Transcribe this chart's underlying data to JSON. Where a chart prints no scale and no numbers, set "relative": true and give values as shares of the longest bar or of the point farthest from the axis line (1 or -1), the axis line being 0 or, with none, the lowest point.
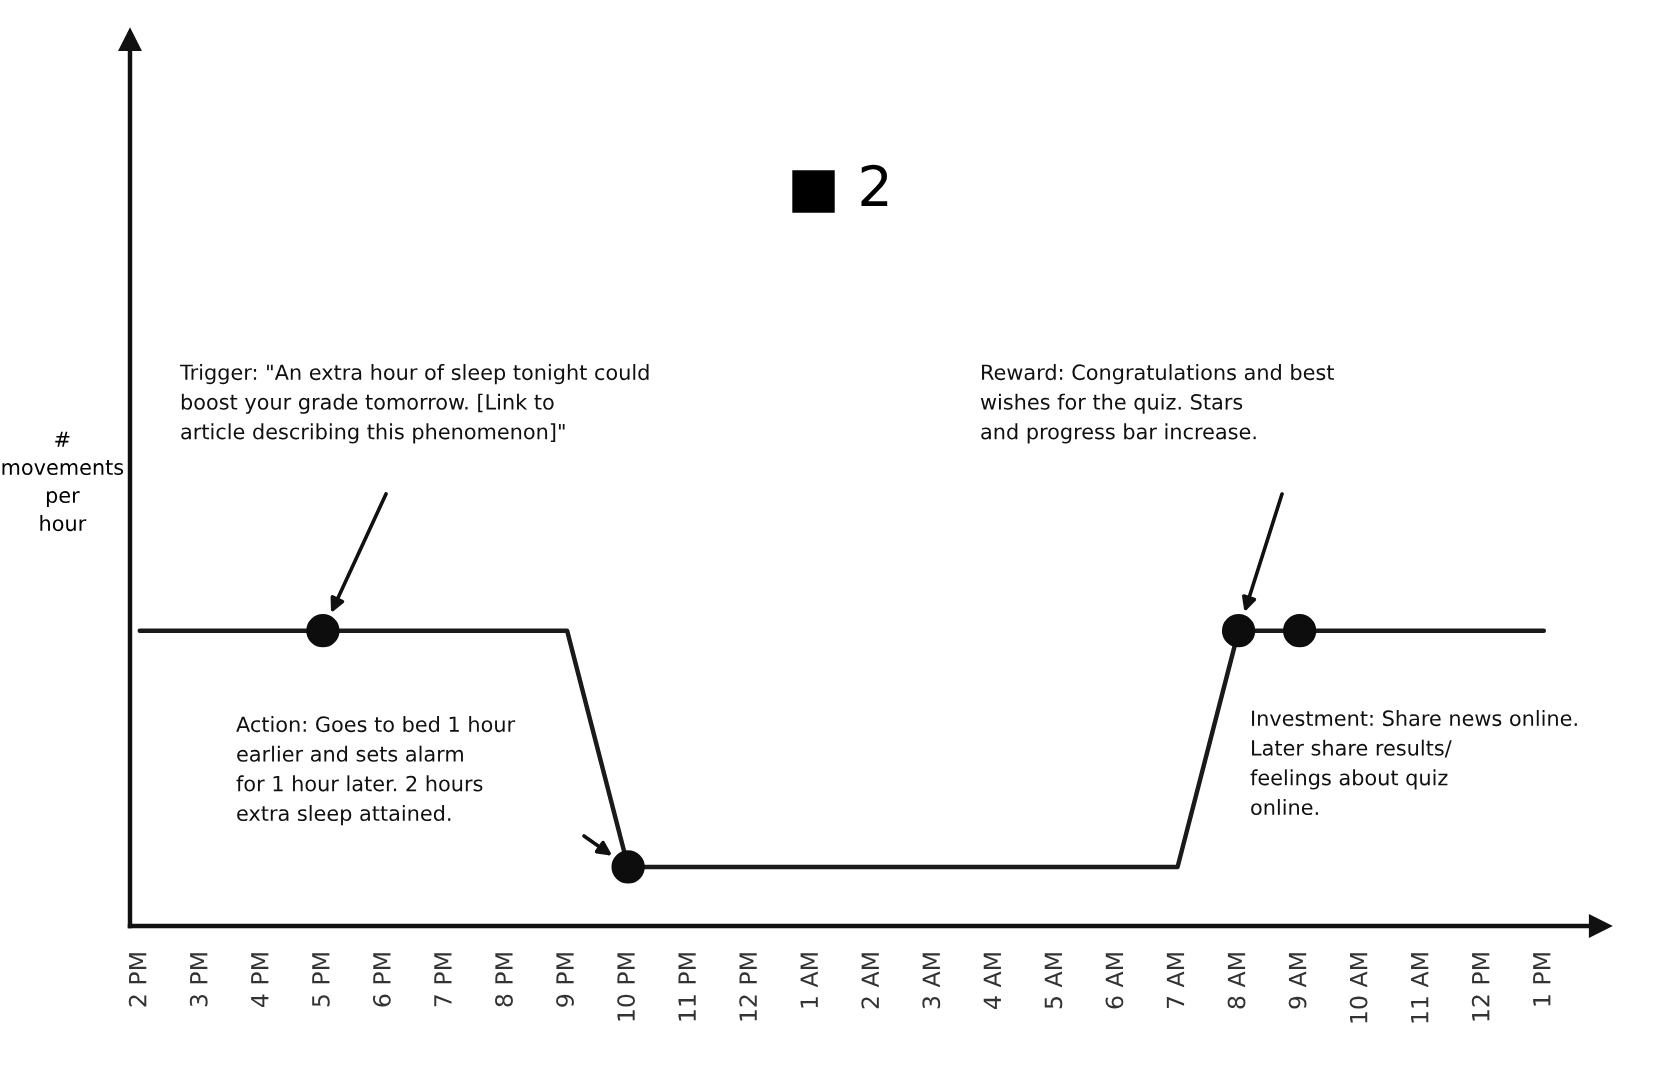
{
  "chart_data": {
    "type": "line",
    "title": "■ 2",
    "ylabel": "#\nmovements\nper\nhour",
    "categories": [
      "2 PM",
      "3 PM",
      "4 PM",
      "5 PM",
      "6 PM",
      "7 PM",
      "8 PM",
      "9 PM",
      "10 PM",
      "11 PM",
      "12 PM",
      "1 AM",
      "2 AM",
      "3 AM",
      "4 AM",
      "5 AM",
      "6 AM",
      "7 AM",
      "8 AM",
      "9 AM",
      "10 AM",
      "11 AM",
      "12 PM",
      "1 PM"
    ],
    "series": [
      {
        "type": "line",
        "color": "#1a1a1a",
        "values": [
          1,
          1,
          1,
          1,
          1,
          1,
          1,
          1,
          0.2,
          0.2,
          0.2,
          0.2,
          0.2,
          0.2,
          0.2,
          0.2,
          0.2,
          0.2,
          1,
          1,
          1,
          1,
          1,
          1
        ]
      },
      {
        "type": "scatter",
        "color": "#0d0d0d",
        "marker": "circle",
        "values": [
          null,
          null,
          null,
          1,
          null,
          null,
          null,
          null,
          0.2,
          null,
          null,
          null,
          null,
          null,
          null,
          null,
          null,
          null,
          1,
          1,
          null,
          null,
          null,
          null
        ]
      }
    ],
    "relative": true,
    "tick_labels": "x",
    "grid": false,
    "annotations": [
      "Trigger: \"An extra hour of sleep tonight could\nboost your grade tomorrow. [Link to\narticle describing this phenomenon]\"",
      "Action: Goes to bed 1 hour\nearlier and sets alarm\nfor 1 hour later. 2 hours\nextra sleep attained.",
      "Reward: Congratulations and best\nwishes for the quiz. Stars\nand progress bar increase.",
      "Investment: Share news online.\nLater share results/\nfeelings about quiz\nonline."
    ]
  }
}
